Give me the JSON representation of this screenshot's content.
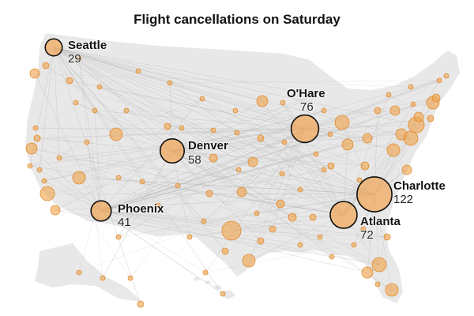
{
  "title": "Flight cancellations on Saturday",
  "colors": {
    "land": "#e8e8e8",
    "route": "#bdbdbd",
    "airport_fill": "#f2a14a",
    "airport_stroke": "#e08a2c",
    "hub_ring": "#111111",
    "text": "#121212"
  },
  "hubs": [
    {
      "id": "seattle",
      "name": "Seattle",
      "count": "29",
      "value": 29
    },
    {
      "id": "ohare",
      "name": "O'Hare",
      "count": "76",
      "value": 76
    },
    {
      "id": "denver",
      "name": "Denver",
      "count": "58",
      "value": 58
    },
    {
      "id": "charlotte",
      "name": "Charlotte",
      "count": "122",
      "value": 122
    },
    {
      "id": "phoenix",
      "name": "Phoenix",
      "count": "41",
      "value": 41
    },
    {
      "id": "atlanta",
      "name": "Atlanta",
      "count": "72",
      "value": 72
    }
  ]
}
